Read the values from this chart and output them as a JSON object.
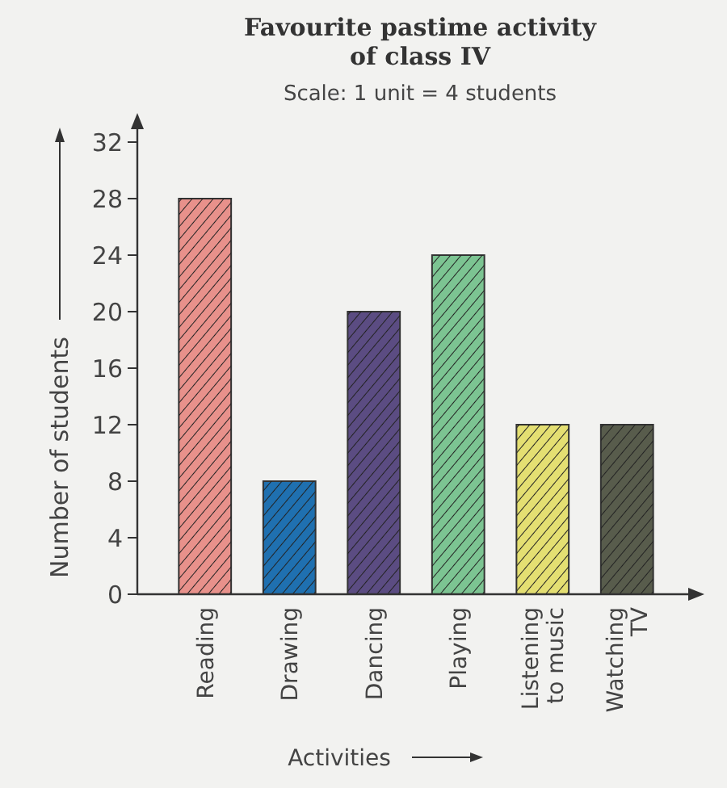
{
  "chart_data": {
    "type": "bar",
    "title": "Favourite pastime activity of class IV",
    "subtitle": "Scale: 1 unit = 4 students",
    "xlabel": "Activities",
    "ylabel": "Number of students",
    "categories": [
      "Reading",
      "Drawing",
      "Dancing",
      "Playing",
      "Listening to music",
      "Watching TV"
    ],
    "values": [
      28,
      8,
      20,
      24,
      12,
      12
    ],
    "colors": [
      "#e8918b",
      "#1f70b0",
      "#5b4c82",
      "#7cc492",
      "#e4df72",
      "#585c4c"
    ],
    "ylim": [
      0,
      32
    ],
    "yticks": [
      0,
      4,
      8,
      12,
      16,
      20,
      24,
      28,
      32
    ],
    "grid": false
  }
}
